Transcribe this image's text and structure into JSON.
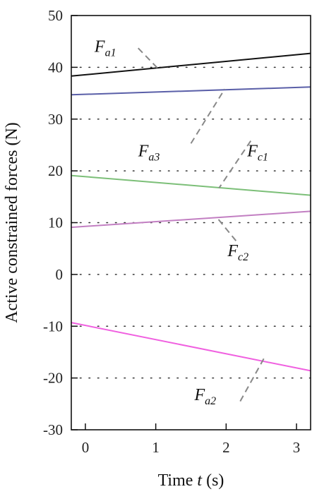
{
  "chart_data": {
    "type": "line",
    "title": "",
    "xlabel_parts": [
      "Time ",
      "t",
      " (s)"
    ],
    "ylabel": "Active constrained forces (N)",
    "xlim": [
      -0.2,
      3.2
    ],
    "ylim": [
      -30,
      50
    ],
    "xticks": [
      0,
      1,
      2,
      3
    ],
    "yticks": [
      50,
      40,
      30,
      20,
      10,
      0,
      -10,
      -20,
      -30
    ],
    "grid": "horizontal-dotted",
    "series": [
      {
        "id": "fa1",
        "label_main": "F",
        "label_sub": "a1",
        "color": "#111111",
        "x": [
          -0.2,
          3.2
        ],
        "y": [
          38.3,
          42.7
        ]
      },
      {
        "id": "fa3",
        "label_main": "F",
        "label_sub": "a3",
        "color": "#5a5fa8",
        "x": [
          -0.2,
          3.2
        ],
        "y": [
          34.7,
          36.2
        ]
      },
      {
        "id": "fc1",
        "label_main": "F",
        "label_sub": "c1",
        "color": "#7cbf78",
        "x": [
          -0.2,
          3.2
        ],
        "y": [
          19.1,
          15.3
        ]
      },
      {
        "id": "fc2",
        "label_main": "F",
        "label_sub": "c2",
        "color": "#c27fc2",
        "x": [
          -0.2,
          3.2
        ],
        "y": [
          9.1,
          12.2
        ]
      },
      {
        "id": "fa2",
        "label_main": "F",
        "label_sub": "a2",
        "color": "#f060e0",
        "x": [
          -0.2,
          3.2
        ],
        "y": [
          -9.3,
          -18.6
        ]
      }
    ],
    "annotations": [
      {
        "series": "fa1",
        "text_x": 0.13,
        "text_y": 43.0,
        "line_from": [
          0.75,
          43.7
        ],
        "line_to": [
          1.05,
          39.5
        ]
      },
      {
        "series": "fa3",
        "text_x": 0.75,
        "text_y": 22.8,
        "line_from": [
          1.5,
          25.3
        ],
        "line_to": [
          1.98,
          35.8
        ]
      },
      {
        "series": "fc1",
        "text_x": 2.3,
        "text_y": 22.8,
        "line_from": [
          2.35,
          25.8
        ],
        "line_to": [
          1.9,
          16.7
        ]
      },
      {
        "series": "fc2",
        "text_x": 2.02,
        "text_y": 3.5,
        "line_from": [
          2.14,
          6.5
        ],
        "line_to": [
          1.88,
          10.8
        ]
      },
      {
        "series": "fa2",
        "text_x": 1.55,
        "text_y": -24.3,
        "line_from": [
          2.2,
          -24.5
        ],
        "line_to": [
          2.55,
          -15.9
        ]
      }
    ]
  }
}
